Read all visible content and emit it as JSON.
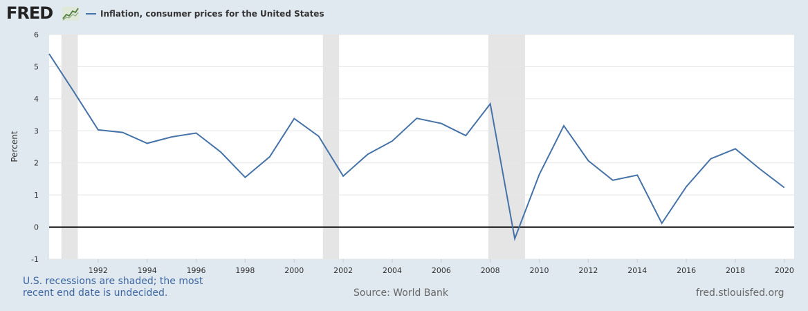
{
  "header": {
    "logo_text": "FRED",
    "logo_icon": "chart-line-icon",
    "legend_label": "Inflation, consumer prices for the United States",
    "series_color": "#4572a7"
  },
  "footer": {
    "recession_note": "U.S. recessions are shaded; the most recent end date is undecided.",
    "source": "Source: World Bank",
    "url": "fred.stlouisfed.org"
  },
  "chart_data": {
    "type": "line",
    "title": "",
    "xlabel": "",
    "ylabel": "Percent",
    "ylim": [
      -1,
      6
    ],
    "xlim": [
      1990,
      2020.4
    ],
    "yticks": [
      -1,
      0,
      1,
      2,
      3,
      4,
      5,
      6
    ],
    "xticks": [
      1992,
      1994,
      1996,
      1998,
      2000,
      2002,
      2004,
      2006,
      2008,
      2010,
      2012,
      2014,
      2016,
      2018,
      2020
    ],
    "grid": true,
    "zero_line": true,
    "recessions": [
      [
        1990.5,
        1991.17
      ],
      [
        2001.17,
        2001.83
      ],
      [
        2007.92,
        2009.42
      ]
    ],
    "series": [
      {
        "name": "Inflation, consumer prices for the United States",
        "color": "#4572a7",
        "x": [
          1990,
          1991,
          1992,
          1993,
          1994,
          1995,
          1996,
          1997,
          1998,
          1999,
          2000,
          2001,
          2002,
          2003,
          2004,
          2005,
          2006,
          2007,
          2008,
          2009,
          2010,
          2011,
          2012,
          2013,
          2014,
          2015,
          2016,
          2017,
          2018,
          2019,
          2020
        ],
        "values": [
          5.4,
          4.23,
          3.03,
          2.95,
          2.61,
          2.81,
          2.93,
          2.34,
          1.55,
          2.19,
          3.38,
          2.83,
          1.59,
          2.27,
          2.68,
          3.39,
          3.23,
          2.85,
          3.84,
          -0.36,
          1.64,
          3.16,
          2.07,
          1.46,
          1.62,
          0.12,
          1.26,
          2.13,
          2.44,
          1.81,
          1.23
        ]
      }
    ]
  }
}
